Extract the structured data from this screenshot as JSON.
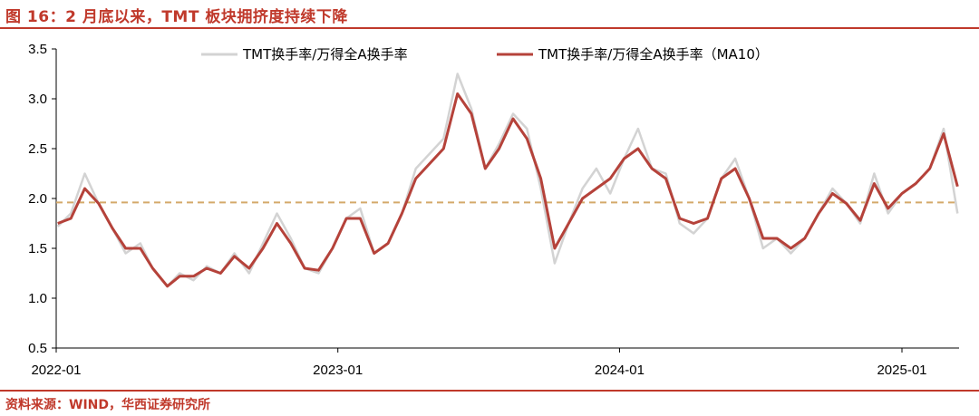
{
  "header": {
    "title": "图 16：2 月底以来，TMT 板块拥挤度持续下降"
  },
  "footer": {
    "source": "资料来源：WIND，华西证券研究所"
  },
  "colors": {
    "accent": "#c0392b",
    "raw_series": "#d3d3d3",
    "ma_series": "#b5423a",
    "reference_line": "#d4a96a"
  },
  "chart_data": {
    "type": "line",
    "title": "图 16：2 月底以来，TMT 板块拥挤度持续下降",
    "xlabel": "",
    "ylabel": "",
    "ylim": [
      0.5,
      3.5
    ],
    "xlim": [
      "2022-01",
      "2025-02"
    ],
    "yticks": [
      "0.5",
      "1.0",
      "1.5",
      "2.0",
      "2.5",
      "3.0",
      "3.5"
    ],
    "xticks": [
      {
        "label": "2022-01",
        "x": "2022-01-01"
      },
      {
        "label": "2023-01",
        "x": "2023-01-01"
      },
      {
        "label": "2024-01",
        "x": "2024-01-01"
      },
      {
        "label": "2025-01",
        "x": "2025-01-01"
      }
    ],
    "grid": false,
    "legend_position": "top",
    "reference_line": {
      "y": 1.96,
      "style": "dashed"
    },
    "series": [
      {
        "name": "TMT换手率/万得全A换手率",
        "style": "raw",
        "points": [
          [
            "2022-01-03",
            1.72
          ],
          [
            "2022-01-20",
            1.85
          ],
          [
            "2022-02-07",
            2.25
          ],
          [
            "2022-02-25",
            1.95
          ],
          [
            "2022-03-15",
            1.7
          ],
          [
            "2022-04-01",
            1.45
          ],
          [
            "2022-04-20",
            1.55
          ],
          [
            "2022-05-06",
            1.3
          ],
          [
            "2022-05-25",
            1.12
          ],
          [
            "2022-06-10",
            1.25
          ],
          [
            "2022-06-28",
            1.18
          ],
          [
            "2022-07-15",
            1.32
          ],
          [
            "2022-08-02",
            1.25
          ],
          [
            "2022-08-20",
            1.45
          ],
          [
            "2022-09-08",
            1.25
          ],
          [
            "2022-09-26",
            1.55
          ],
          [
            "2022-10-14",
            1.85
          ],
          [
            "2022-11-01",
            1.6
          ],
          [
            "2022-11-19",
            1.3
          ],
          [
            "2022-12-07",
            1.25
          ],
          [
            "2022-12-25",
            1.5
          ],
          [
            "2023-01-12",
            1.8
          ],
          [
            "2023-01-30",
            1.9
          ],
          [
            "2023-02-17",
            1.45
          ],
          [
            "2023-03-07",
            1.55
          ],
          [
            "2023-03-25",
            1.85
          ],
          [
            "2023-04-12",
            2.3
          ],
          [
            "2023-04-30",
            2.45
          ],
          [
            "2023-05-18",
            2.6
          ],
          [
            "2023-06-05",
            3.25
          ],
          [
            "2023-06-23",
            2.9
          ],
          [
            "2023-07-11",
            2.3
          ],
          [
            "2023-07-29",
            2.55
          ],
          [
            "2023-08-16",
            2.85
          ],
          [
            "2023-09-03",
            2.7
          ],
          [
            "2023-09-21",
            2.1
          ],
          [
            "2023-10-09",
            1.35
          ],
          [
            "2023-10-27",
            1.75
          ],
          [
            "2023-11-14",
            2.1
          ],
          [
            "2023-12-02",
            2.3
          ],
          [
            "2023-12-20",
            2.05
          ],
          [
            "2024-01-07",
            2.4
          ],
          [
            "2024-01-25",
            2.7
          ],
          [
            "2024-02-12",
            2.3
          ],
          [
            "2024-03-01",
            2.25
          ],
          [
            "2024-03-19",
            1.75
          ],
          [
            "2024-04-06",
            1.65
          ],
          [
            "2024-04-24",
            1.8
          ],
          [
            "2024-05-12",
            2.2
          ],
          [
            "2024-05-30",
            2.4
          ],
          [
            "2024-06-17",
            2.0
          ],
          [
            "2024-07-05",
            1.5
          ],
          [
            "2024-07-23",
            1.6
          ],
          [
            "2024-08-10",
            1.45
          ],
          [
            "2024-08-28",
            1.6
          ],
          [
            "2024-09-15",
            1.85
          ],
          [
            "2024-10-03",
            2.1
          ],
          [
            "2024-10-21",
            1.95
          ],
          [
            "2024-11-08",
            1.75
          ],
          [
            "2024-11-26",
            2.25
          ],
          [
            "2024-12-14",
            1.85
          ],
          [
            "2025-01-01",
            2.05
          ],
          [
            "2025-01-19",
            2.15
          ],
          [
            "2025-02-06",
            2.3
          ],
          [
            "2025-02-24",
            2.7
          ],
          [
            "2025-03-14",
            1.85
          ]
        ]
      },
      {
        "name": "TMT换手率/万得全A换手率（MA10）",
        "style": "ma",
        "points": [
          [
            "2022-01-03",
            1.75
          ],
          [
            "2022-01-20",
            1.8
          ],
          [
            "2022-02-07",
            2.1
          ],
          [
            "2022-02-25",
            1.95
          ],
          [
            "2022-03-15",
            1.7
          ],
          [
            "2022-04-01",
            1.5
          ],
          [
            "2022-04-20",
            1.5
          ],
          [
            "2022-05-06",
            1.3
          ],
          [
            "2022-05-25",
            1.12
          ],
          [
            "2022-06-10",
            1.22
          ],
          [
            "2022-06-28",
            1.22
          ],
          [
            "2022-07-15",
            1.3
          ],
          [
            "2022-08-02",
            1.25
          ],
          [
            "2022-08-20",
            1.42
          ],
          [
            "2022-09-08",
            1.3
          ],
          [
            "2022-09-26",
            1.5
          ],
          [
            "2022-10-14",
            1.75
          ],
          [
            "2022-11-01",
            1.55
          ],
          [
            "2022-11-19",
            1.3
          ],
          [
            "2022-12-07",
            1.28
          ],
          [
            "2022-12-25",
            1.5
          ],
          [
            "2023-01-12",
            1.8
          ],
          [
            "2023-01-30",
            1.8
          ],
          [
            "2023-02-17",
            1.45
          ],
          [
            "2023-03-07",
            1.55
          ],
          [
            "2023-03-25",
            1.85
          ],
          [
            "2023-04-12",
            2.2
          ],
          [
            "2023-04-30",
            2.35
          ],
          [
            "2023-05-18",
            2.5
          ],
          [
            "2023-06-05",
            3.05
          ],
          [
            "2023-06-23",
            2.85
          ],
          [
            "2023-07-11",
            2.3
          ],
          [
            "2023-07-29",
            2.5
          ],
          [
            "2023-08-16",
            2.8
          ],
          [
            "2023-09-03",
            2.6
          ],
          [
            "2023-09-21",
            2.2
          ],
          [
            "2023-10-09",
            1.5
          ],
          [
            "2023-10-27",
            1.75
          ],
          [
            "2023-11-14",
            2.0
          ],
          [
            "2023-12-02",
            2.1
          ],
          [
            "2023-12-20",
            2.2
          ],
          [
            "2024-01-07",
            2.4
          ],
          [
            "2024-01-25",
            2.5
          ],
          [
            "2024-02-12",
            2.3
          ],
          [
            "2024-03-01",
            2.2
          ],
          [
            "2024-03-19",
            1.8
          ],
          [
            "2024-04-06",
            1.75
          ],
          [
            "2024-04-24",
            1.8
          ],
          [
            "2024-05-12",
            2.2
          ],
          [
            "2024-05-30",
            2.3
          ],
          [
            "2024-06-17",
            2.0
          ],
          [
            "2024-07-05",
            1.6
          ],
          [
            "2024-07-23",
            1.6
          ],
          [
            "2024-08-10",
            1.5
          ],
          [
            "2024-08-28",
            1.6
          ],
          [
            "2024-09-15",
            1.85
          ],
          [
            "2024-10-03",
            2.05
          ],
          [
            "2024-10-21",
            1.95
          ],
          [
            "2024-11-08",
            1.78
          ],
          [
            "2024-11-26",
            2.15
          ],
          [
            "2024-12-14",
            1.9
          ],
          [
            "2025-01-01",
            2.05
          ],
          [
            "2025-01-19",
            2.15
          ],
          [
            "2025-02-06",
            2.3
          ],
          [
            "2025-02-24",
            2.65
          ],
          [
            "2025-03-14",
            2.12
          ]
        ]
      }
    ]
  }
}
